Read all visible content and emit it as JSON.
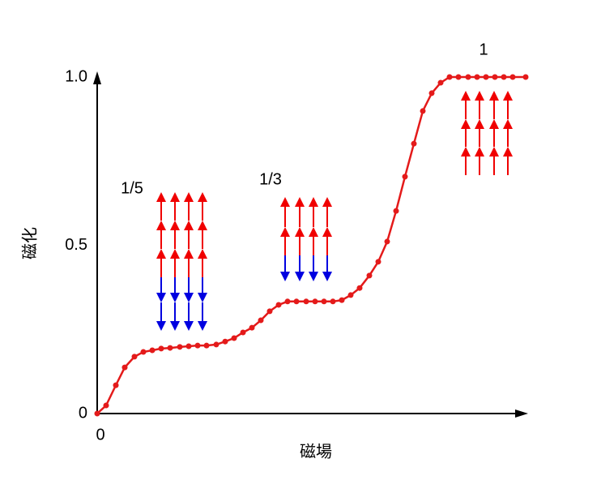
{
  "chart_data": {
    "type": "line",
    "x_label": "磁場",
    "y_label": "磁化",
    "x": [
      0,
      0.11,
      0.23,
      0.34,
      0.46,
      0.57,
      0.68,
      0.79,
      0.9,
      1.02,
      1.13,
      1.24,
      1.35,
      1.47,
      1.58,
      1.69,
      1.8,
      1.91,
      2.02,
      2.13,
      2.24,
      2.35,
      2.46,
      2.58,
      2.69,
      2.8,
      2.91,
      3.02,
      3.13,
      3.24,
      3.36,
      3.47,
      3.58,
      3.69,
      3.8,
      3.91,
      4.02,
      4.13,
      4.24,
      4.35,
      4.46,
      4.58,
      4.69,
      4.8,
      4.91,
      5.02,
      5.13,
      5.29
    ],
    "series": [
      {
        "color": "#e41a1a",
        "values": [
          0,
          0.024,
          0.084,
          0.137,
          0.169,
          0.183,
          0.188,
          0.193,
          0.195,
          0.198,
          0.2,
          0.202,
          0.202,
          0.205,
          0.214,
          0.224,
          0.241,
          0.255,
          0.277,
          0.304,
          0.323,
          0.333,
          0.333,
          0.333,
          0.333,
          0.333,
          0.333,
          0.337,
          0.352,
          0.373,
          0.41,
          0.451,
          0.511,
          0.602,
          0.704,
          0.802,
          0.899,
          0.952,
          0.983,
          1,
          1,
          1,
          1,
          1,
          1,
          1,
          1,
          1
        ]
      }
    ],
    "xlim": [
      0,
      5.3
    ],
    "xticks": [
      0
    ],
    "ylim": [
      0,
      1
    ],
    "yticks": [
      0,
      0.5,
      {
        "value": 1,
        "label": "1.0"
      }
    ],
    "grid": false,
    "annotations": [
      "1/5",
      "1/3",
      "1"
    ]
  }
}
